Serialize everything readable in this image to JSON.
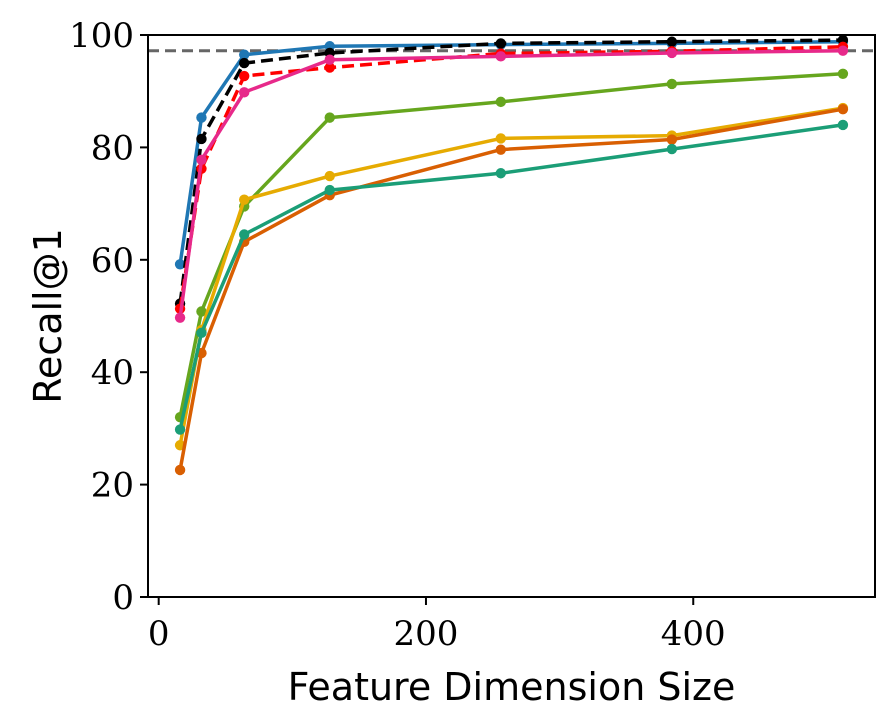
{
  "chart_data": {
    "type": "line",
    "title": "",
    "xlabel": "Feature Dimension Size",
    "ylabel": "Recall@1",
    "xlim": [
      -8,
      536
    ],
    "ylim": [
      0,
      100
    ],
    "xticks": [
      0,
      200,
      400
    ],
    "yticks": [
      0,
      20,
      40,
      60,
      80,
      100
    ],
    "x": [
      16,
      32,
      64,
      128,
      256,
      384,
      512
    ],
    "grid": false,
    "legend": "none",
    "reference_line": {
      "y": 97.2,
      "color": "#666666",
      "style": "dashed"
    },
    "series": [
      {
        "color": "#1f77b4",
        "style": "solid",
        "values": [
          59.2,
          85.3,
          96.5,
          98.0,
          98.3,
          98.5,
          98.8
        ]
      },
      {
        "color": "#000000",
        "style": "dashed",
        "values": [
          52.2,
          81.5,
          95.0,
          96.8,
          98.5,
          98.8,
          99.1
        ]
      },
      {
        "color": "#ff0000",
        "style": "dashed",
        "values": [
          51.3,
          76.2,
          92.7,
          94.2,
          96.7,
          97.1,
          97.9
        ]
      },
      {
        "color": "#e7298a",
        "style": "solid",
        "values": [
          49.7,
          77.8,
          89.8,
          95.6,
          96.2,
          96.8,
          97.2
        ]
      },
      {
        "color": "#66a61e",
        "style": "solid",
        "values": [
          32.0,
          50.8,
          69.5,
          85.3,
          88.1,
          91.3,
          93.1
        ]
      },
      {
        "color": "#e6ab02",
        "style": "solid",
        "values": [
          27.0,
          47.5,
          70.7,
          74.9,
          81.6,
          82.1,
          87.0
        ]
      },
      {
        "color": "#d95f02",
        "style": "solid",
        "values": [
          22.6,
          43.4,
          63.2,
          71.5,
          79.6,
          81.4,
          86.8
        ]
      },
      {
        "color": "#1b9e77",
        "style": "solid",
        "values": [
          29.8,
          47.0,
          64.5,
          72.4,
          75.4,
          79.7,
          84.0
        ]
      }
    ]
  }
}
